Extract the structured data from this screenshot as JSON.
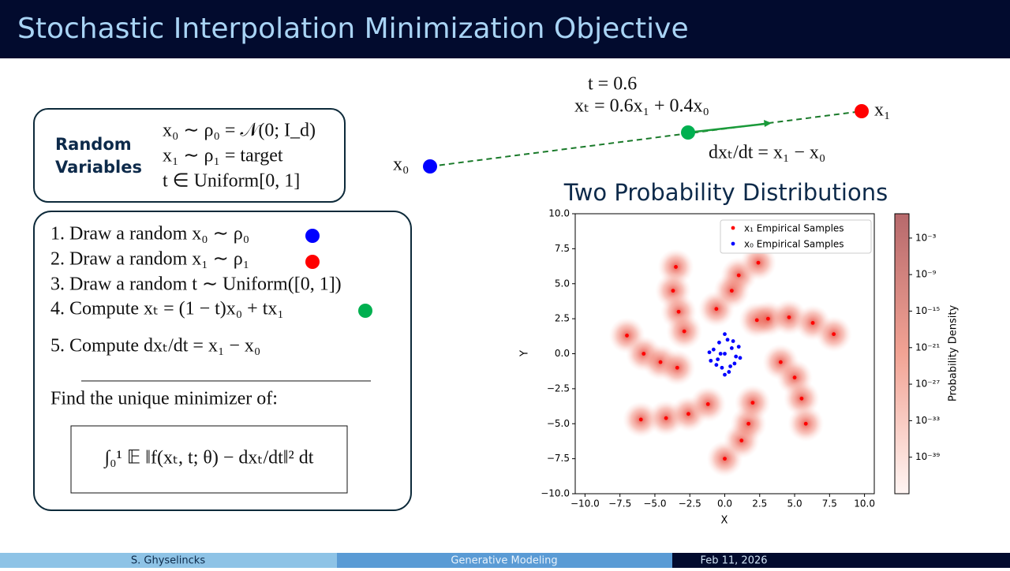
{
  "header": {
    "title": "Stochastic Interpolation Minimization Objective"
  },
  "random_variables": {
    "label": [
      "Random",
      "Variables"
    ],
    "lines": [
      "x₀ ∼ ρ₀ = 𝒩(0; I_d)",
      "x₁ ∼ ρ₁ = target",
      "t ∈ Uniform[0, 1]"
    ]
  },
  "steps": {
    "items": [
      "1.  Draw a random x₀ ∼ ρ₀",
      "2.  Draw a random x₁ ∼ ρ₁",
      "3.  Draw a random t ∼ Uniform([0, 1])",
      "4.  Compute xₜ = (1 − t)x₀ + tx₁",
      "5.  Compute dxₜ/dt = x₁ − x₀"
    ],
    "find": "Find the unique minimizer of:",
    "objective": "∫₀¹ 𝔼 ‖f(xₜ, t; θ) − dxₜ/dt‖² dt"
  },
  "diagram": {
    "t_label": "t = 0.6",
    "xt_label": "xₜ = 0.6x₁ + 0.4x₀",
    "x0": "x₀",
    "x1": "x₁",
    "derivative": "dxₜ/dt = x₁ − x₀"
  },
  "chart_data": {
    "type": "scatter",
    "title": "Two Probability Distributions",
    "xlabel": "X",
    "ylabel": "Y",
    "xlim": [
      -10.7,
      10.7
    ],
    "ylim": [
      -10,
      10
    ],
    "xticks": [
      {
        "value": -10,
        "label": "−10.0"
      },
      {
        "value": -7.5,
        "label": "−7.5"
      },
      {
        "value": -5,
        "label": "−5.0"
      },
      {
        "value": -2.5,
        "label": "−2.5"
      },
      {
        "value": 0,
        "label": "0.0"
      },
      {
        "value": 2.5,
        "label": "2.5"
      },
      {
        "value": 5,
        "label": "5.0"
      },
      {
        "value": 7.5,
        "label": "7.5"
      },
      {
        "value": 10,
        "label": "10.0"
      }
    ],
    "yticks": [
      {
        "value": -10,
        "label": "−10.0"
      },
      {
        "value": -7.5,
        "label": "−7.5"
      },
      {
        "value": -5,
        "label": "−5.0"
      },
      {
        "value": -2.5,
        "label": "−2.5"
      },
      {
        "value": 0,
        "label": "0.0"
      },
      {
        "value": 2.5,
        "label": "2.5"
      },
      {
        "value": 5,
        "label": "5.0"
      },
      {
        "value": 7.5,
        "label": "7.5"
      },
      {
        "value": 10,
        "label": "10.0"
      }
    ],
    "legend": "upper right",
    "series": [
      {
        "name": "x₁ Empirical Samples",
        "color": "#ff0000",
        "x": [
          -3.5,
          -3.7,
          -3.3,
          -2.9,
          -7.0,
          -5.8,
          -4.6,
          -3.4,
          -6.0,
          -4.2,
          -2.6,
          -1.2,
          0.0,
          1.2,
          1.7,
          2.0,
          4.0,
          5.0,
          5.5,
          5.8,
          1.0,
          2.4,
          -0.6,
          0.5,
          2.3,
          3.1,
          4.6,
          6.3,
          7.8
        ],
        "y": [
          6.2,
          4.5,
          3.0,
          1.6,
          1.3,
          0.0,
          -0.6,
          -1.0,
          -4.7,
          -4.6,
          -4.3,
          -3.6,
          -7.5,
          -6.2,
          -5.0,
          -3.5,
          -0.6,
          -1.7,
          -3.2,
          -5.0,
          5.6,
          6.5,
          3.2,
          4.5,
          2.4,
          2.5,
          2.6,
          2.2,
          1.4
        ]
      },
      {
        "name": "x₀ Empirical Samples",
        "color": "#0000ff",
        "x": [
          0.0,
          0.5,
          -0.5,
          0.8,
          -0.8,
          0.2,
          -0.2,
          1.0,
          -1.0,
          0.4,
          -0.4,
          0.6,
          -0.6,
          0.0,
          0.3,
          -0.3,
          1.1,
          -1.1,
          0.0,
          0.7
        ],
        "y": [
          0.0,
          0.4,
          -0.4,
          -0.2,
          0.3,
          1.0,
          -1.0,
          0.5,
          -0.5,
          -0.9,
          0.8,
          0.9,
          -0.8,
          1.4,
          -1.3,
          0.0,
          -0.3,
          0.1,
          -1.5,
          -0.7
        ]
      }
    ],
    "colorbar": {
      "label": "Probability Density",
      "scale": "log",
      "lim": [
        1e-45,
        10
      ],
      "ticks": [
        {
          "value": 0.001,
          "label": "10⁻³"
        },
        {
          "value": 1e-09,
          "label": "10⁻⁹"
        },
        {
          "value": 1e-15,
          "label": "10⁻¹⁵"
        },
        {
          "value": 1e-21,
          "label": "10⁻²¹"
        },
        {
          "value": 1e-27,
          "label": "10⁻²⁷"
        },
        {
          "value": 1e-33,
          "label": "10⁻³³"
        },
        {
          "value": 1e-39,
          "label": "10⁻³⁹"
        }
      ]
    }
  },
  "footer": {
    "author": "S. Ghyselincks",
    "topic": "Generative Modeling",
    "date": "Feb 11, 2026"
  }
}
